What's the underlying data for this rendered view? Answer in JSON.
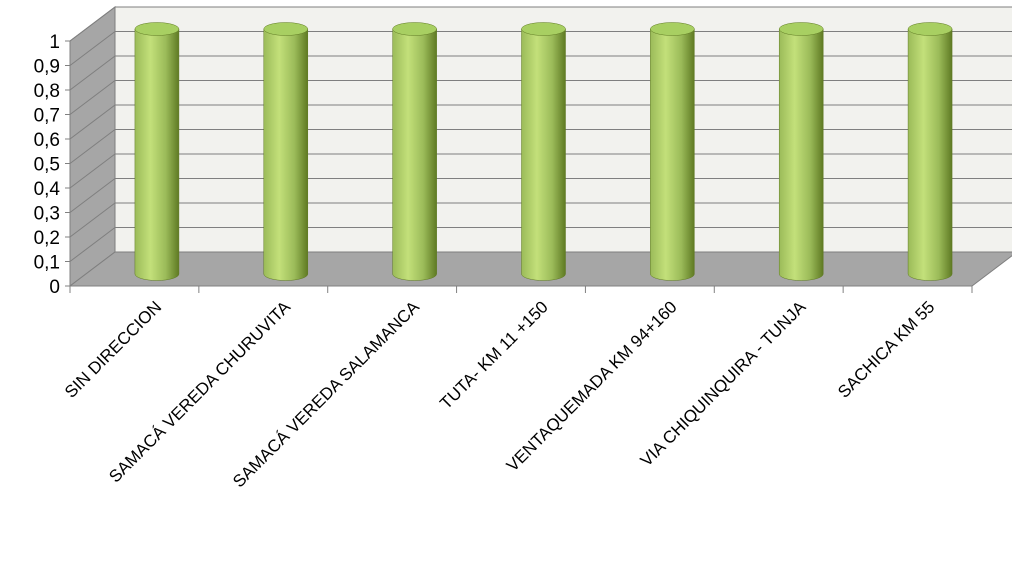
{
  "chart_data": {
    "type": "bar",
    "style": "3d-cylinder",
    "categories": [
      "SIN DIRECCION",
      "SAMACÁ VEREDA CHURUVITA",
      "SAMACÁ VEREDA SALAMANCA",
      "TUTA- KM 11 +150",
      "VENTAQUEMADA KM 94+160",
      "VIA CHIQUINQUIRA - TUNJA",
      "SACHICA KM 55"
    ],
    "values": [
      1,
      1,
      1,
      1,
      1,
      1,
      1
    ],
    "ylim": [
      0,
      1
    ],
    "yticks": [
      "0",
      "0,1",
      "0,2",
      "0,3",
      "0,4",
      "0,5",
      "0,6",
      "0,7",
      "0,8",
      "0,9",
      "1"
    ],
    "title": "",
    "xlabel": "",
    "ylabel": "",
    "grid": true,
    "legend": "none",
    "colors": {
      "bar_light": "#c3e07a",
      "bar_mid": "#9bbb59",
      "bar_dark": "#5f7a23",
      "bar_top": "#a8cf62",
      "back_wall": "#f2f2ee",
      "side_wall": "#a6a6a6",
      "floor": "#a6a6a6",
      "gridline": "#7f7f7f"
    }
  }
}
